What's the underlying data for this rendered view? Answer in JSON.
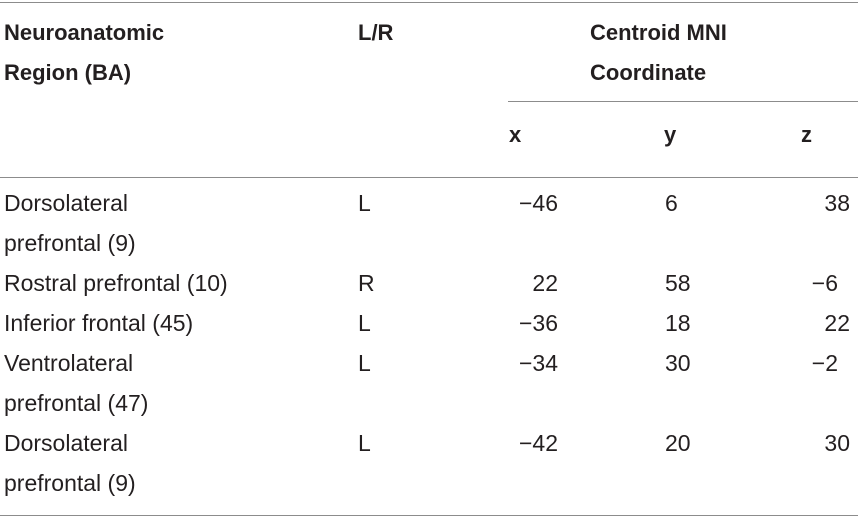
{
  "table": {
    "header": {
      "region_line1": "Neuroanatomic",
      "region_line2": "Region (BA)",
      "side": "L/R",
      "centroid_line1": "Centroid MNI",
      "centroid_line2": "Coordinate",
      "x": "x",
      "y": "y",
      "z": "z"
    },
    "rows": [
      {
        "region": [
          "Dorsolateral",
          "prefrontal (9)"
        ],
        "side": "L",
        "x": "−46",
        "y": "6",
        "z": "38"
      },
      {
        "region": [
          "Rostral prefrontal (10)"
        ],
        "side": "R",
        "x": "22",
        "y": "58",
        "z": "−6"
      },
      {
        "region": [
          "Inferior frontal (45)"
        ],
        "side": "L",
        "x": "−36",
        "y": "18",
        "z": "22"
      },
      {
        "region": [
          "Ventrolateral",
          "prefrontal (47)"
        ],
        "side": "L",
        "x": "−34",
        "y": "30",
        "z": "−2"
      },
      {
        "region": [
          "Dorsolateral",
          "prefrontal (9)"
        ],
        "side": "L",
        "x": "−42",
        "y": "20",
        "z": "30"
      }
    ]
  }
}
